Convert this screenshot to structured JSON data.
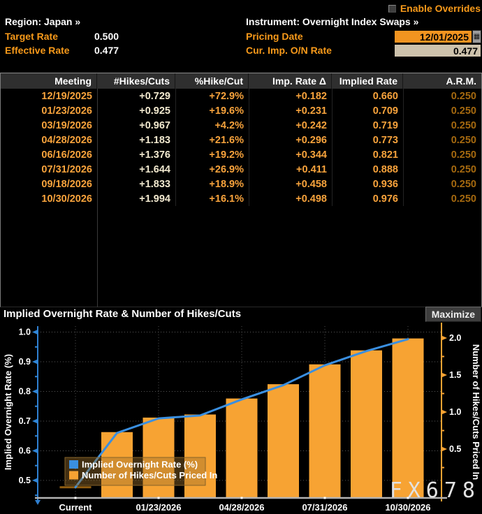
{
  "header": {
    "enable_overrides_label": "Enable Overrides",
    "region_label": "Region:",
    "region_value": "Japan »",
    "instrument_label": "Instrument:",
    "instrument_value": "Overnight Index Swaps »",
    "target_rate_label": "Target Rate",
    "target_rate_value": "0.500",
    "effective_rate_label": "Effective Rate",
    "effective_rate_value": "0.477",
    "pricing_date_label": "Pricing Date",
    "pricing_date_value": "12/01/2025",
    "cur_imp_label": "Cur. Imp. O/N Rate",
    "cur_imp_value": "0.477",
    "calendar_icon": "▦"
  },
  "table": {
    "columns": [
      "Meeting",
      "#Hikes/Cuts",
      "%Hike/Cut",
      "Imp. Rate Δ",
      "Implied Rate",
      "A.R.M."
    ],
    "rows": [
      [
        "12/19/2025",
        "+0.729",
        "+72.9%",
        "+0.182",
        "0.660",
        "0.250"
      ],
      [
        "01/23/2026",
        "+0.925",
        "+19.6%",
        "+0.231",
        "0.709",
        "0.250"
      ],
      [
        "03/19/2026",
        "+0.967",
        "+4.2%",
        "+0.242",
        "0.719",
        "0.250"
      ],
      [
        "04/28/2026",
        "+1.183",
        "+21.6%",
        "+0.296",
        "0.773",
        "0.250"
      ],
      [
        "06/16/2026",
        "+1.376",
        "+19.2%",
        "+0.344",
        "0.821",
        "0.250"
      ],
      [
        "07/31/2026",
        "+1.644",
        "+26.9%",
        "+0.411",
        "0.888",
        "0.250"
      ],
      [
        "09/18/2026",
        "+1.833",
        "+18.9%",
        "+0.458",
        "0.936",
        "0.250"
      ],
      [
        "10/30/2026",
        "+1.994",
        "+16.1%",
        "+0.498",
        "0.976",
        "0.250"
      ]
    ]
  },
  "chart": {
    "title": "Implied Overnight Rate & Number of Hikes/Cuts",
    "maximize_label": "Maximize",
    "watermark": "FX678"
  },
  "chart_data": {
    "type": "bar",
    "subtype": "bar+line dual axis",
    "title": "Implied Overnight Rate & Number of Hikes/Cuts",
    "categories": [
      "Current",
      "12/19/2025",
      "01/23/2026",
      "03/19/2026",
      "04/28/2026",
      "06/16/2026",
      "07/31/2026",
      "09/18/2026",
      "10/30/2026"
    ],
    "series": [
      {
        "name": "Implied Overnight Rate (%)",
        "type": "line",
        "axis": "left",
        "color": "#3a8fe0",
        "values": [
          0.477,
          0.66,
          0.709,
          0.719,
          0.773,
          0.821,
          0.888,
          0.936,
          0.976
        ]
      },
      {
        "name": "Number of Hikes/Cuts Priced In",
        "type": "bar",
        "axis": "right",
        "color": "#f7a333",
        "values": [
          null,
          0.729,
          0.925,
          0.967,
          1.183,
          1.376,
          1.644,
          1.833,
          1.994
        ]
      }
    ],
    "current_rate_marker": 0.477,
    "left_axis": {
      "label": "Implied Overnight Rate (%)",
      "ticks": [
        1.0,
        0.9,
        0.8,
        0.7,
        0.6,
        0.5
      ],
      "range": [
        0.441,
        1.02
      ]
    },
    "right_axis": {
      "label": "Number of Hikes/Cuts Priced In",
      "ticks": [
        2.0,
        1.5,
        1.0,
        0.5
      ],
      "range": [
        -0.16,
        2.16
      ]
    },
    "x_tick_labels": [
      "Current",
      "01/23/2026",
      "04/28/2026",
      "07/31/2026",
      "10/30/2026"
    ],
    "grid": "dotted",
    "legend_position": "lower-left-inside",
    "legend": [
      "Implied Overnight Rate (%)",
      "Number of Hikes/Cuts Priced In"
    ]
  },
  "colors": {
    "accent_orange": "#f89a1a",
    "value_orange": "#f8a33c",
    "value_cream": "#f2e9cf",
    "arm_dim_orange": "#a5690f",
    "line_blue": "#3a8fe0",
    "bar_orange": "#f7a333",
    "input_orange_bg": "#f29420",
    "input_tan_bg": "#cdc2ac",
    "header_row_bg": "#2f2f2f"
  }
}
